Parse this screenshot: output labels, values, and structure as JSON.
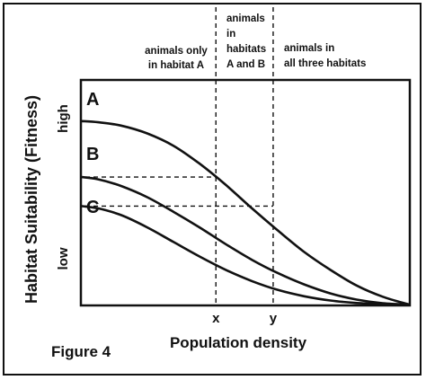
{
  "chart_data": {
    "type": "line",
    "title": "",
    "xlabel": "Population density",
    "ylabel": "Habitat Suitability (Fitness)",
    "y_tick_labels": [
      "high",
      "low"
    ],
    "x_markers": [
      "x",
      "y"
    ],
    "figure_label": "Figure 4",
    "grid": false,
    "legend": "none",
    "xlim": [
      0,
      1
    ],
    "ylim": [
      0,
      1
    ],
    "series": [
      {
        "name": "A",
        "x": [
          0,
          0.05,
          0.12,
          0.2,
          0.28,
          0.36,
          0.44,
          0.52,
          0.6,
          0.68,
          0.76,
          0.84,
          0.92,
          1.0
        ],
        "y": [
          0.82,
          0.815,
          0.8,
          0.765,
          0.71,
          0.63,
          0.535,
          0.43,
          0.33,
          0.235,
          0.155,
          0.085,
          0.035,
          0.0
        ]
      },
      {
        "name": "B",
        "x": [
          0,
          0.05,
          0.12,
          0.2,
          0.28,
          0.36,
          0.44,
          0.52,
          0.6,
          0.68,
          0.76,
          0.84,
          0.92,
          1.0
        ],
        "y": [
          0.57,
          0.56,
          0.53,
          0.48,
          0.415,
          0.345,
          0.27,
          0.2,
          0.14,
          0.09,
          0.05,
          0.022,
          0.006,
          0.0
        ]
      },
      {
        "name": "C",
        "x": [
          0,
          0.05,
          0.12,
          0.2,
          0.28,
          0.36,
          0.44,
          0.52,
          0.6,
          0.68,
          0.76,
          0.84,
          0.92,
          1.0
        ],
        "y": [
          0.44,
          0.43,
          0.4,
          0.345,
          0.28,
          0.215,
          0.155,
          0.105,
          0.065,
          0.037,
          0.018,
          0.007,
          0.002,
          0.0
        ]
      }
    ],
    "vertical_lines": [
      {
        "label": "x",
        "x": 0.41
      },
      {
        "label": "y",
        "x": 0.585
      }
    ],
    "horizontal_guides": [
      {
        "from_series": "B",
        "to_marker": "x",
        "y": 0.57
      },
      {
        "from_series": "C",
        "to_marker": "y",
        "y": 0.44
      }
    ],
    "region_labels": [
      {
        "lines": [
          "animals only",
          "in habitat A"
        ]
      },
      {
        "lines": [
          "animals",
          "in",
          "habitats",
          "A and B"
        ]
      },
      {
        "lines": [
          "animals in",
          "all three habitats"
        ]
      }
    ]
  },
  "colors": {
    "ink": "#111111",
    "background": "#ffffff"
  }
}
